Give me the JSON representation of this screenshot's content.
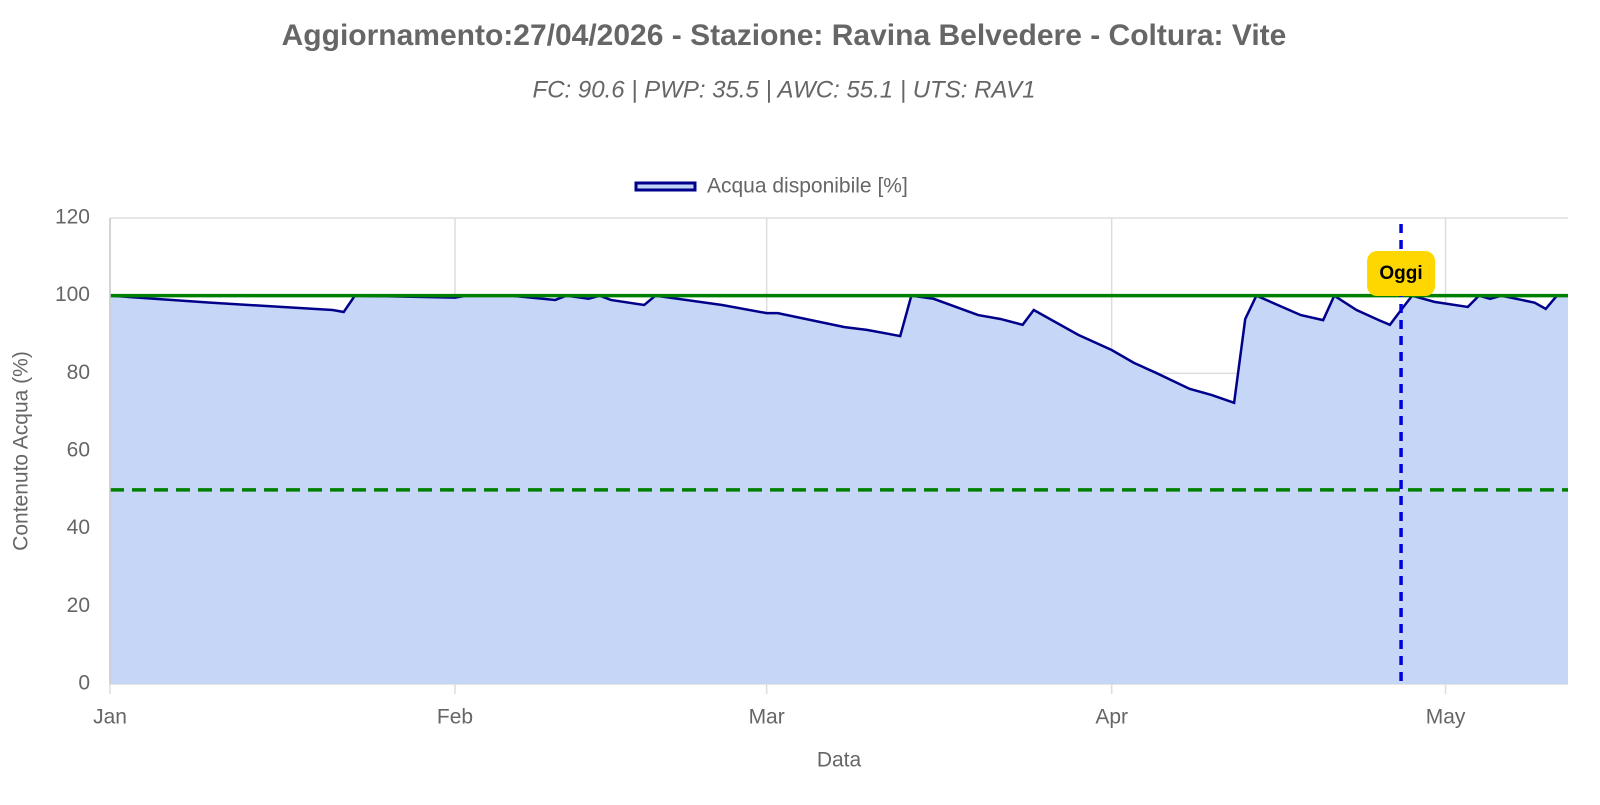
{
  "chart_data": {
    "type": "area",
    "title": "Aggiornamento:27/04/2026 - Stazione: Ravina Belvedere - Coltura: Vite",
    "subtitle": "FC: 90.6 | PWP: 35.5 | AWC: 55.1 | UTS: RAV1",
    "x_label": "Data",
    "y_label": "Contenuto Acqua (%)",
    "x": [
      0,
      9,
      20,
      21,
      22,
      31,
      32,
      36,
      40,
      41,
      43,
      44,
      45,
      48,
      49,
      55,
      59,
      60,
      66,
      68,
      71,
      72,
      74,
      78,
      80,
      82,
      83,
      87,
      90,
      92,
      94,
      97,
      99,
      101,
      102,
      103,
      107,
      109,
      110,
      112,
      114,
      115,
      116,
      117,
      119,
      122,
      123,
      124,
      125,
      128,
      129,
      130,
      131
    ],
    "series": [
      {
        "name": "Acqua disponibile [%]",
        "color": "#00008b",
        "fill": "#c2d4f5",
        "values": [
          100,
          98.2,
          96.3,
          95.8,
          100,
          99.5,
          100,
          100,
          98.9,
          100,
          99.2,
          100,
          98.9,
          97.6,
          100,
          97.6,
          95.5,
          95.5,
          91.9,
          91.2,
          89.6,
          100,
          99.2,
          95,
          94,
          92.5,
          96.3,
          89.9,
          86,
          82.7,
          80.1,
          76,
          74.4,
          72.4,
          94,
          100,
          95,
          93.7,
          100,
          96.3,
          93.7,
          92.5,
          96.3,
          100,
          98.4,
          97.1,
          100,
          99.2,
          100,
          98.2,
          96.6,
          100,
          100
        ]
      }
    ],
    "xlim": [
      0,
      131
    ],
    "xticks": [
      {
        "value": 0,
        "label": "Jan"
      },
      {
        "value": 31,
        "label": "Feb"
      },
      {
        "value": 59,
        "label": "Mar"
      },
      {
        "value": 90,
        "label": "Apr"
      },
      {
        "value": 120,
        "label": "May"
      }
    ],
    "ylim": [
      0,
      120
    ],
    "yticks": [
      0,
      20,
      40,
      60,
      80,
      100,
      120
    ],
    "grid": true,
    "reference_lines": [
      {
        "value": 100,
        "color": "#008000",
        "dashed": false
      },
      {
        "value": 50,
        "color": "#008000",
        "dashed": true
      }
    ],
    "marker": {
      "value": 116,
      "label": "Oggi",
      "color": "#0000e0"
    },
    "legend": "top"
  }
}
